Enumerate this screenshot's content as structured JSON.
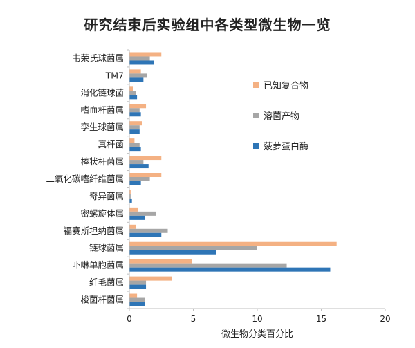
{
  "chart_data": {
    "type": "bar",
    "orientation": "horizontal",
    "title": "研究结束后实验组中各类型微生物一览",
    "xlabel": "微生物分类百分比",
    "ylabel": "",
    "xlim": [
      0,
      20
    ],
    "xticks": [
      0,
      5,
      10,
      15,
      20
    ],
    "grid": false,
    "legend_position": "right",
    "categories": [
      "韦荣氏球菌属",
      "TM7",
      "消化链球菌",
      "嗜血杆菌属",
      "孪生球菌属",
      "真杆菌",
      "棒状杆菌属",
      "二氧化碳嗜纤维菌属",
      "奇异菌属",
      "密螺旋体属",
      "福赛斯坦纳菌属",
      "链球菌属",
      "卟啉单胞菌属",
      "纤毛菌属",
      "梭菌杆菌属"
    ],
    "series": [
      {
        "name": "已知复合物",
        "color": "#f4b183",
        "values": [
          2.5,
          0.9,
          0.3,
          1.3,
          1.0,
          0.4,
          2.5,
          2.5,
          0.1,
          0.7,
          0.5,
          16.2,
          4.9,
          3.3,
          0.6
        ]
      },
      {
        "name": "溶菌产物",
        "color": "#a6a6a6",
        "values": [
          1.6,
          1.4,
          0.5,
          0.8,
          0.8,
          0.8,
          1.1,
          1.6,
          0.1,
          2.1,
          3.0,
          10.0,
          12.3,
          1.3,
          1.2
        ]
      },
      {
        "name": "菠萝蛋白酶",
        "color": "#2e75b6",
        "values": [
          1.9,
          1.1,
          0.6,
          0.9,
          0.8,
          0.9,
          1.5,
          0.9,
          0.2,
          1.2,
          2.5,
          6.8,
          15.7,
          1.3,
          1.2
        ]
      }
    ]
  }
}
